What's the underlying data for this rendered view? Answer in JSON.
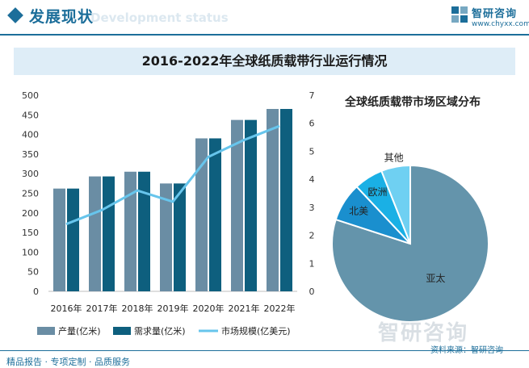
{
  "header": {
    "title": "发展现状",
    "subtitle_ghost": "Development status",
    "logo_name": "智研咨询",
    "logo_url": "www.chyxx.com"
  },
  "banner": {
    "title": "2016-2022年全球纸质载带行业运行情况"
  },
  "pie_title": "全球纸质载带市场区域分布",
  "footer": {
    "left": "精品报告 · 专项定制 · 品质服务",
    "source": "资料来源：智研咨询"
  },
  "watermark": "智研咨询",
  "colors": {
    "production": "#6a8da4",
    "demand": "#0e5f7e",
    "market_line": "#67c5ec",
    "pie": [
      "#6494ab",
      "#1a8fce",
      "#1ab0e5",
      "#6fd0f2"
    ]
  },
  "chart_data": [
    {
      "type": "bar",
      "categories": [
        "2016年",
        "2017年",
        "2018年",
        "2019年",
        "2020年",
        "2021年",
        "2022年"
      ],
      "series": [
        {
          "name": "产量(亿米)",
          "type": "bar",
          "axis": "left",
          "values": [
            262,
            293,
            305,
            275,
            390,
            437,
            465
          ]
        },
        {
          "name": "需求量(亿米)",
          "type": "bar",
          "axis": "left",
          "values": [
            262,
            293,
            305,
            275,
            390,
            437,
            465
          ]
        },
        {
          "name": "市场规模(亿美元)",
          "type": "line",
          "axis": "right",
          "values": [
            2.4,
            2.9,
            3.6,
            3.2,
            4.8,
            5.4,
            5.9
          ]
        }
      ],
      "y_left": {
        "ylim": [
          0,
          500
        ],
        "ticks": [
          "0",
          "50",
          "100",
          "150",
          "200",
          "250",
          "300",
          "350",
          "400",
          "450",
          "500"
        ]
      },
      "y_right": {
        "ylim": [
          0,
          7
        ],
        "ticks": [
          "0",
          "1",
          "2",
          "3",
          "4",
          "5",
          "6",
          "7"
        ]
      },
      "legend": "bottom"
    },
    {
      "type": "pie",
      "labels": [
        "亚太",
        "北美",
        "欧洲",
        "其他"
      ],
      "values": [
        80,
        8,
        6,
        6
      ]
    }
  ]
}
